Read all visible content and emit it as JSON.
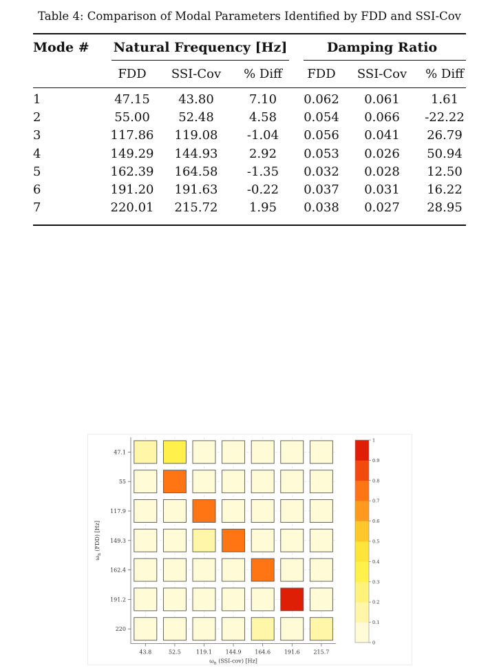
{
  "table": {
    "caption": "Table 4: Comparison of Modal Parameters Identified by FDD and SSI-Cov",
    "header_mode": "Mode #",
    "group_freq": "Natural Frequency [Hz]",
    "group_damp": "Damping Ratio",
    "subheaders": [
      "FDD",
      "SSI-Cov",
      "% Diff",
      "FDD",
      "SSI-Cov",
      "% Diff"
    ],
    "rows": [
      [
        "1",
        "47.15",
        "43.80",
        "7.10",
        "0.062",
        "0.061",
        "1.61"
      ],
      [
        "2",
        "55.00",
        "52.48",
        "4.58",
        "0.054",
        "0.066",
        "-22.22"
      ],
      [
        "3",
        "117.86",
        "119.08",
        "-1.04",
        "0.056",
        "0.041",
        "26.79"
      ],
      [
        "4",
        "149.29",
        "144.93",
        "2.92",
        "0.053",
        "0.026",
        "50.94"
      ],
      [
        "5",
        "162.39",
        "164.58",
        "-1.35",
        "0.032",
        "0.028",
        "12.50"
      ],
      [
        "6",
        "191.20",
        "191.63",
        "-0.22",
        "0.037",
        "0.031",
        "16.22"
      ],
      [
        "7",
        "220.01",
        "215.72",
        "1.95",
        "0.038",
        "0.027",
        "28.95"
      ]
    ]
  },
  "chart_data": {
    "type": "heatmap",
    "x_tick_labels": [
      "43.8",
      "52.5",
      "119.1",
      "144.9",
      "164.6",
      "191.6",
      "215.7"
    ],
    "y_tick_labels": [
      "47.1",
      "55",
      "117.9",
      "149.3",
      "162.4",
      "191.2",
      "220"
    ],
    "xlabel_sym": "ω",
    "xlabel_sub": "n",
    "xlabel_rest": " (SSI-cov) [Hz]",
    "ylabel_sym": "ω",
    "ylabel_sub": "n",
    "ylabel_rest": " (FDD) [Hz]",
    "values": [
      [
        0.2,
        0.4,
        0.05,
        0.05,
        0.05,
        0.05,
        0.05
      ],
      [
        0.05,
        0.8,
        0.05,
        0.05,
        0.05,
        0.05,
        0.05
      ],
      [
        0.05,
        0.05,
        0.8,
        0.05,
        0.05,
        0.05,
        0.05
      ],
      [
        0.05,
        0.05,
        0.15,
        0.75,
        0.05,
        0.05,
        0.05
      ],
      [
        0.05,
        0.05,
        0.05,
        0.05,
        0.8,
        0.05,
        0.05
      ],
      [
        0.05,
        0.05,
        0.05,
        0.05,
        0.05,
        0.95,
        0.05
      ],
      [
        0.05,
        0.05,
        0.05,
        0.05,
        0.15,
        0.05,
        0.15
      ]
    ],
    "colorbar": {
      "min": 0,
      "max": 1,
      "tick_labels": [
        "0",
        "0.1",
        "0.2",
        "0.3",
        "0.4",
        "0.5",
        "0.6",
        "0.7",
        "0.8",
        "0.9",
        "1"
      ],
      "colors": [
        "#fffef4",
        "#fffbd6",
        "#fff6a8",
        "#fff27a",
        "#fff04c",
        "#ffe43a",
        "#ffc82a",
        "#ff9a1f",
        "#ff7514",
        "#f24a0c",
        "#de1f05"
      ]
    },
    "grid": true,
    "legend": "colorbar-right"
  }
}
